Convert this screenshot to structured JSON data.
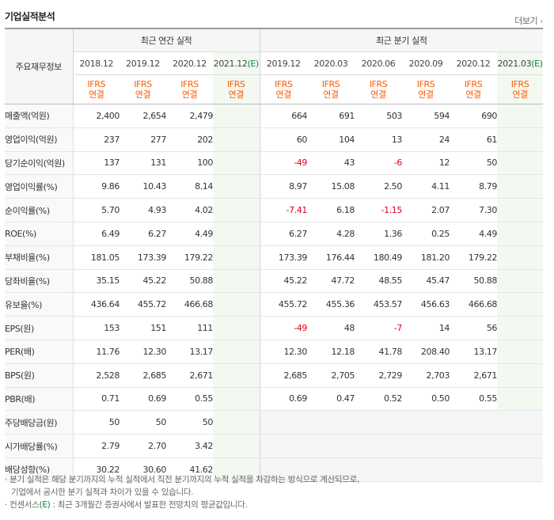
{
  "header": {
    "title": "기업실적분석",
    "more": "더보기"
  },
  "corner_label": "주요재무정보",
  "groups": {
    "annual": "최근 연간 실적",
    "quarter": "최근 분기 실적"
  },
  "annual_periods": [
    "2018.12",
    "2019.12",
    "2020.12",
    "2021.12"
  ],
  "quarter_periods": [
    "2019.12",
    "2020.03",
    "2020.06",
    "2020.09",
    "2020.12",
    "2021.03"
  ],
  "estimate_mark": "(E)",
  "ifrs": "IFRS",
  "consolidated": "연결",
  "rows": [
    {
      "label": "매출액(억원)",
      "annual": [
        "2,400",
        "2,654",
        "2,479",
        ""
      ],
      "quarter": [
        "664",
        "691",
        "503",
        "594",
        "690",
        ""
      ]
    },
    {
      "label": "영업이익(억원)",
      "annual": [
        "237",
        "277",
        "202",
        ""
      ],
      "quarter": [
        "60",
        "104",
        "13",
        "24",
        "61",
        ""
      ]
    },
    {
      "label": "당기순이익(억원)",
      "annual": [
        "137",
        "131",
        "100",
        ""
      ],
      "quarter": [
        "-49",
        "43",
        "-6",
        "12",
        "50",
        ""
      ]
    },
    {
      "label": "영업이익률(%)",
      "annual": [
        "9.86",
        "10.43",
        "8.14",
        ""
      ],
      "quarter": [
        "8.97",
        "15.08",
        "2.50",
        "4.11",
        "8.79",
        ""
      ]
    },
    {
      "label": "순이익률(%)",
      "annual": [
        "5.70",
        "4.93",
        "4.02",
        ""
      ],
      "quarter": [
        "-7.41",
        "6.18",
        "-1.15",
        "2.07",
        "7.30",
        ""
      ]
    },
    {
      "label": "ROE(%)",
      "annual": [
        "6.49",
        "6.27",
        "4.49",
        ""
      ],
      "quarter": [
        "6.27",
        "4.28",
        "1.36",
        "0.25",
        "4.49",
        ""
      ]
    },
    {
      "label": "부채비율(%)",
      "annual": [
        "181.05",
        "173.39",
        "179.22",
        ""
      ],
      "quarter": [
        "173.39",
        "176.44",
        "180.49",
        "181.20",
        "179.22",
        ""
      ]
    },
    {
      "label": "당좌비율(%)",
      "annual": [
        "35.15",
        "45.22",
        "50.88",
        ""
      ],
      "quarter": [
        "45.22",
        "47.72",
        "48.55",
        "45.47",
        "50.88",
        ""
      ]
    },
    {
      "label": "유보율(%)",
      "annual": [
        "436.64",
        "455.72",
        "466.68",
        ""
      ],
      "quarter": [
        "455.72",
        "455.36",
        "453.57",
        "456.63",
        "466.68",
        ""
      ]
    },
    {
      "label": "EPS(원)",
      "annual": [
        "153",
        "151",
        "111",
        ""
      ],
      "quarter": [
        "-49",
        "48",
        "-7",
        "14",
        "56",
        ""
      ]
    },
    {
      "label": "PER(배)",
      "annual": [
        "11.76",
        "12.30",
        "13.17",
        ""
      ],
      "quarter": [
        "12.30",
        "12.18",
        "41.78",
        "208.40",
        "13.17",
        ""
      ]
    },
    {
      "label": "BPS(원)",
      "annual": [
        "2,528",
        "2,685",
        "2,671",
        ""
      ],
      "quarter": [
        "2,685",
        "2,705",
        "2,729",
        "2,703",
        "2,671",
        ""
      ]
    },
    {
      "label": "PBR(배)",
      "annual": [
        "0.71",
        "0.69",
        "0.55",
        ""
      ],
      "quarter": [
        "0.69",
        "0.47",
        "0.52",
        "0.50",
        "0.55",
        ""
      ]
    },
    {
      "label": "주당배당금(원)",
      "annual": [
        "50",
        "50",
        "50",
        ""
      ],
      "quarter": null
    },
    {
      "label": "시가배당률(%)",
      "annual": [
        "2.79",
        "2.70",
        "3.42",
        ""
      ],
      "quarter": null
    },
    {
      "label": "배당성향(%)",
      "annual": [
        "30.22",
        "30.60",
        "41.62",
        ""
      ],
      "quarter": null
    }
  ],
  "notes": {
    "line1": "분기 실적은 해당 분기까지의 누적 실적에서 직전 분기까지의 누적 실적을 차감하는 방식으로 계산되므로,",
    "line2": "기업에서 공시한 분기 실적과 차이가 있을 수 있습니다.",
    "line3_a": "컨센서스",
    "line3_b": "(E)",
    "line3_c": ": 최근 3개월간 증권사에서 발표한 전망치의 평균값입니다."
  },
  "colors": {
    "ifrs": "#ff5a00",
    "negative": "#e0001b",
    "estimate_bg": "#f3f9f1",
    "estimate_mark": "#0a8a3a"
  }
}
